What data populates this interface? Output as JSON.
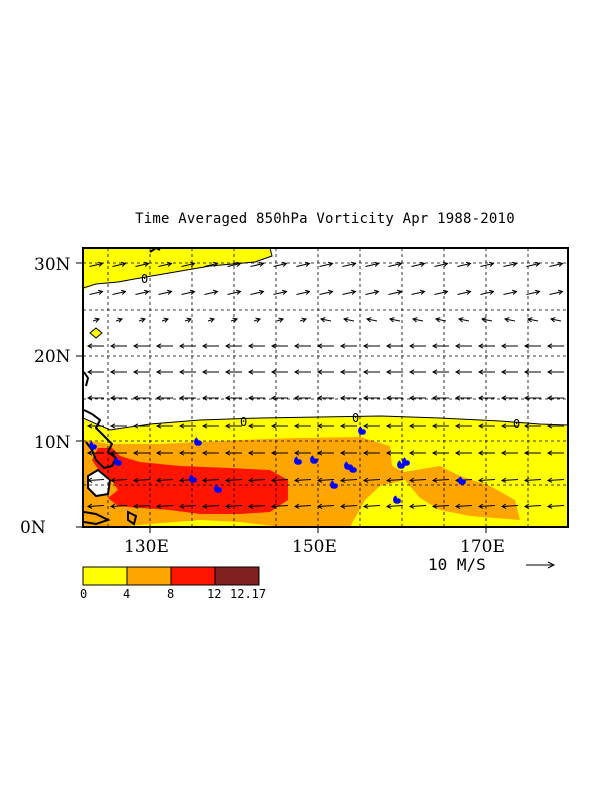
{
  "title": "Time Averaged 850hPa Vorticity  Apr 1988-2010",
  "lat_labels": [
    "30N",
    "20N",
    "10N",
    "0N"
  ],
  "lon_labels": [
    "130E",
    "150E",
    "170E"
  ],
  "contour_labels": [
    "0",
    "0",
    "0",
    "0"
  ],
  "reference_vector": "10 M/S",
  "colorbar": {
    "colors": [
      "#ffff00",
      "#ffa500",
      "#ff1500",
      "#7f1f1f"
    ],
    "tick_labels": [
      "0",
      "4",
      "8",
      "12",
      "12.17"
    ]
  },
  "colors": {
    "vorticity_0_4": "#ffff00",
    "vorticity_4_8": "#ffa500",
    "vorticity_8_12": "#ff1500",
    "vorticity_12_plus": "#7f1f1f",
    "typhoon_symbol": "#0000ff",
    "coastline": "#000000"
  },
  "icons": {
    "storm_marker": "tropical-cyclone-symbol",
    "vector_arrow": "wind-arrow"
  }
}
